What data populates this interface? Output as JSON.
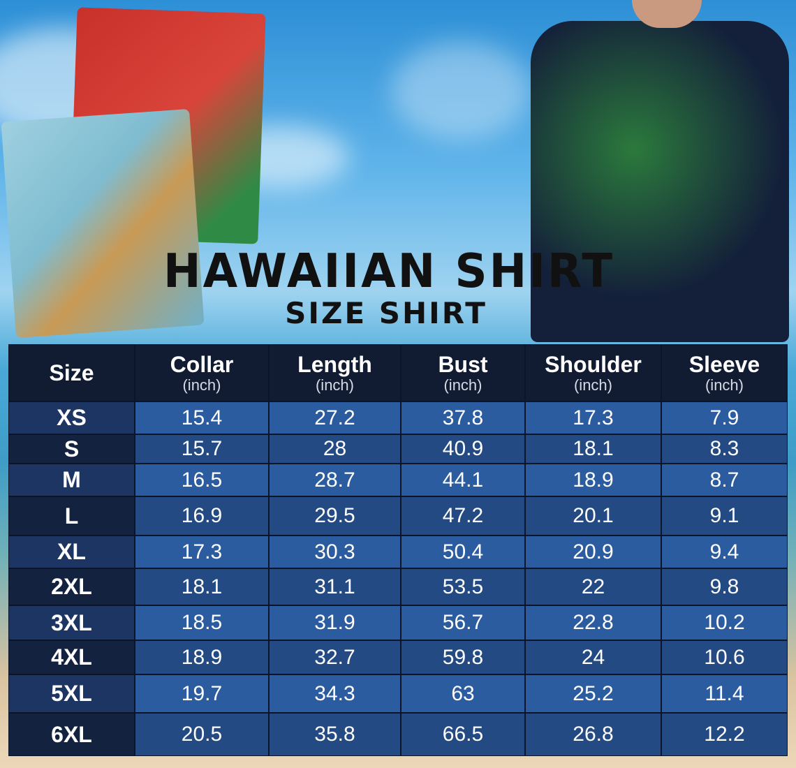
{
  "title": "HAWAIIAN SHIRT",
  "subtitle": "SIZE SHIRT",
  "colors": {
    "header": "#111c33",
    "row_light": "#2b5c9f",
    "row_dark": "#234a82",
    "size_light": "#1d3563",
    "size_dark": "#13223f"
  },
  "table": {
    "columns": [
      {
        "label": "Size",
        "unit": ""
      },
      {
        "label": "Collar",
        "unit": "(inch)"
      },
      {
        "label": "Length",
        "unit": "(inch)"
      },
      {
        "label": "Bust",
        "unit": "(inch)"
      },
      {
        "label": "Shoulder",
        "unit": "(inch)"
      },
      {
        "label": "Sleeve",
        "unit": "(inch)"
      }
    ],
    "rows": [
      [
        "XS",
        "15.4",
        "27.2",
        "37.8",
        "17.3",
        "7.9"
      ],
      [
        "S",
        "15.7",
        "28",
        "40.9",
        "18.1",
        "8.3"
      ],
      [
        "M",
        "16.5",
        "28.7",
        "44.1",
        "18.9",
        "8.7"
      ],
      [
        "L",
        "16.9",
        "29.5",
        "47.2",
        "20.1",
        "9.1"
      ],
      [
        "XL",
        "17.3",
        "30.3",
        "50.4",
        "20.9",
        "9.4"
      ],
      [
        "2XL",
        "18.1",
        "31.1",
        "53.5",
        "22",
        "9.8"
      ],
      [
        "3XL",
        "18.5",
        "31.9",
        "56.7",
        "22.8",
        "10.2"
      ],
      [
        "4XL",
        "18.9",
        "32.7",
        "59.8",
        "24",
        "10.6"
      ],
      [
        "5XL",
        "19.7",
        "34.3",
        "63",
        "25.2",
        "11.4"
      ],
      [
        "6XL",
        "20.5",
        "35.8",
        "66.5",
        "26.8",
        "12.2"
      ]
    ]
  }
}
